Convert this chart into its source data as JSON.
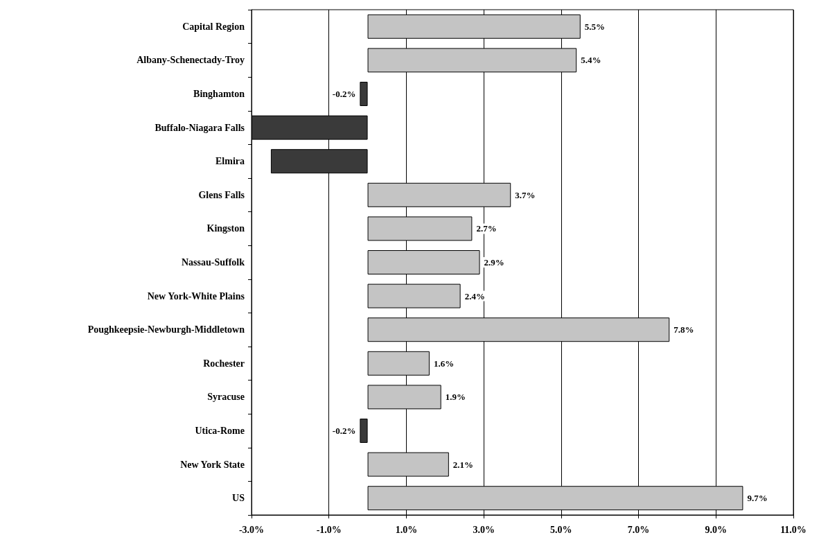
{
  "chart_data": {
    "type": "bar",
    "orientation": "horizontal",
    "categories": [
      "Capital Region",
      "Albany-Schenectady-Troy",
      "Binghamton",
      "Buffalo-Niagara Falls",
      "Elmira",
      "Glens Falls",
      "Kingston",
      "Nassau-Suffolk",
      "New York-White Plains",
      "Poughkeepsie-Newburgh-Middletown",
      "Rochester",
      "Syracuse",
      "Utica-Rome",
      "New York State",
      "US"
    ],
    "values": [
      5.5,
      5.4,
      -0.2,
      -3.0,
      -2.5,
      3.7,
      2.7,
      2.9,
      2.4,
      7.8,
      1.6,
      1.9,
      -0.2,
      2.1,
      9.7
    ],
    "value_labels": [
      "5.5%",
      "5.4%",
      "-0.2%",
      null,
      null,
      "3.7%",
      "2.7%",
      "2.9%",
      "2.4%",
      "7.8%",
      "1.6%",
      "1.9%",
      "-0.2%",
      "2.1%",
      "9.7%"
    ],
    "colors": [
      "#c4c4c4",
      "#c4c4c4",
      "#3a3a3a",
      "#3a3a3a",
      "#3a3a3a",
      "#c4c4c4",
      "#c4c4c4",
      "#c4c4c4",
      "#c4c4c4",
      "#c4c4c4",
      "#c4c4c4",
      "#c4c4c4",
      "#3a3a3a",
      "#c4c4c4",
      "#c4c4c4"
    ],
    "xlim": [
      -3,
      11
    ],
    "xticks": [
      {
        "value": -3,
        "label": "-3.0%"
      },
      {
        "value": -1,
        "label": "-1.0%"
      },
      {
        "value": 1,
        "label": "1.0%"
      },
      {
        "value": 3,
        "label": "3.0%"
      },
      {
        "value": 5,
        "label": "5.0%"
      },
      {
        "value": 7,
        "label": "7.0%"
      },
      {
        "value": 9,
        "label": "9.0%"
      },
      {
        "value": 11,
        "label": "11.0%"
      }
    ],
    "grid": "x"
  }
}
